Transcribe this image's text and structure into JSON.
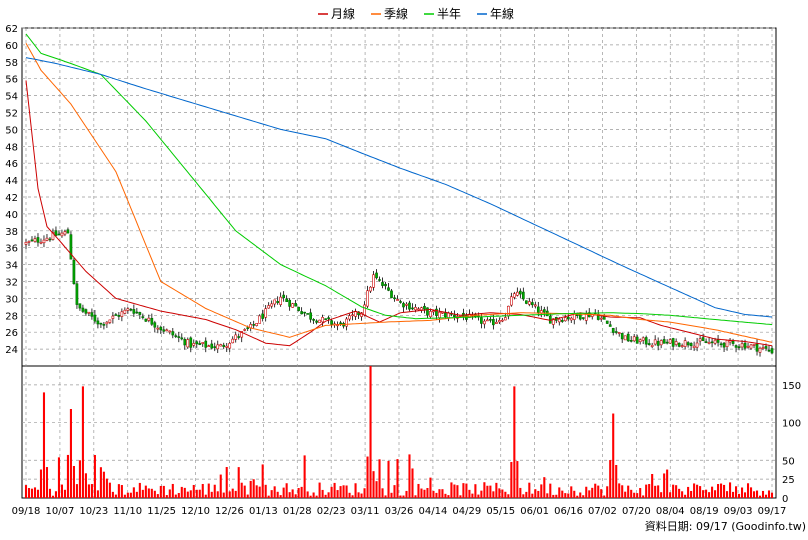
{
  "chart_data": {
    "type": "line",
    "subtype": "candlestick-with-moving-averages-and-volume",
    "legend": [
      {
        "name": "月線",
        "color": "#cc0000"
      },
      {
        "name": "季線",
        "color": "#ff6600"
      },
      {
        "name": "半年",
        "color": "#00cc00"
      },
      {
        "name": "年線",
        "color": "#0066cc"
      }
    ],
    "legend_position": "top-center",
    "grid": true,
    "price_axis": {
      "ylim": [
        22,
        62
      ],
      "ticks": [
        24,
        26,
        28,
        30,
        32,
        34,
        36,
        38,
        40,
        42,
        44,
        46,
        48,
        50,
        52,
        54,
        56,
        58,
        60,
        62
      ],
      "side": "left"
    },
    "volume_axis": {
      "ylim": [
        0,
        175
      ],
      "ticks": [
        0,
        25,
        50,
        100,
        150
      ],
      "side": "right"
    },
    "x_ticks": [
      "09/18",
      "10/07",
      "10/23",
      "11/10",
      "11/25",
      "12/10",
      "12/26",
      "01/13",
      "01/28",
      "02/23",
      "03/11",
      "03/26",
      "04/14",
      "04/29",
      "05/15",
      "06/01",
      "06/16",
      "07/02",
      "07/20",
      "08/04",
      "08/19",
      "09/03",
      "09/17"
    ],
    "x_count": 250,
    "series": [
      {
        "name": "月線",
        "x": [
          0,
          4,
          7,
          12,
          20,
          30,
          45,
          60,
          70,
          80,
          88,
          95,
          100,
          110,
          118,
          125,
          135,
          145,
          155,
          165,
          175,
          185,
          195,
          205,
          212,
          220,
          230,
          240,
          249
        ],
        "values": [
          55.8,
          43,
          38.5,
          36.5,
          33.2,
          30,
          28.5,
          27.5,
          26.3,
          24.7,
          24.4,
          26,
          27.3,
          28.5,
          27.2,
          28.3,
          28.7,
          28,
          28.3,
          28.1,
          27.4,
          28.3,
          27.8,
          27.7,
          26.8,
          26.1,
          25.2,
          24.9,
          24.4
        ]
      },
      {
        "name": "季線",
        "x": [
          0,
          5,
          15,
          30,
          45,
          60,
          75,
          88,
          100,
          110,
          120,
          135,
          150,
          165,
          180,
          195,
          205,
          215,
          230,
          249
        ],
        "values": [
          60.2,
          57,
          53,
          45,
          32,
          28.8,
          26.5,
          25.4,
          26.8,
          27,
          27.2,
          27.4,
          28,
          28.3,
          28.2,
          28,
          27.5,
          27.2,
          26.3,
          24.8
        ]
      },
      {
        "name": "半年",
        "x": [
          0,
          5,
          15,
          25,
          40,
          55,
          70,
          85,
          100,
          112,
          120,
          130,
          140,
          150,
          165,
          180,
          195,
          205,
          215,
          230,
          249
        ],
        "values": [
          61.3,
          59,
          57.8,
          56.5,
          51,
          44.5,
          38,
          34,
          31.5,
          29,
          28,
          27.6,
          27.7,
          27.8,
          28,
          28.2,
          28.3,
          28.2,
          28,
          27.5,
          26.9
        ]
      },
      {
        "name": "年線",
        "x": [
          0,
          10,
          25,
          40,
          55,
          70,
          85,
          100,
          112,
          125,
          140,
          155,
          170,
          185,
          200,
          215,
          230,
          240,
          249
        ],
        "values": [
          58.5,
          57.8,
          56.5,
          54.8,
          53.2,
          51.6,
          50,
          48.9,
          47.2,
          45.4,
          43.5,
          41.2,
          38.7,
          36.2,
          33.7,
          31.3,
          28.9,
          28.1,
          27.8
        ]
      }
    ],
    "candles_summary": [
      {
        "x": 0,
        "close": 36.5
      },
      {
        "x": 10,
        "close": 37.5
      },
      {
        "x": 14,
        "close": 37.8
      },
      {
        "x": 17,
        "close": 29
      },
      {
        "x": 25,
        "close": 27
      },
      {
        "x": 35,
        "close": 28.8
      },
      {
        "x": 45,
        "close": 26.5
      },
      {
        "x": 55,
        "close": 24.5
      },
      {
        "x": 65,
        "close": 24.3
      },
      {
        "x": 75,
        "close": 26.5
      },
      {
        "x": 85,
        "close": 30.2
      },
      {
        "x": 95,
        "close": 27.8
      },
      {
        "x": 105,
        "close": 26.8
      },
      {
        "x": 112,
        "close": 28.5
      },
      {
        "x": 116,
        "close": 32.6
      },
      {
        "x": 125,
        "close": 29.5
      },
      {
        "x": 135,
        "close": 28.2
      },
      {
        "x": 145,
        "close": 28
      },
      {
        "x": 155,
        "close": 27
      },
      {
        "x": 160,
        "close": 28
      },
      {
        "x": 163,
        "close": 30.7
      },
      {
        "x": 175,
        "close": 27.5
      },
      {
        "x": 190,
        "close": 28.2
      },
      {
        "x": 200,
        "close": 25.2
      },
      {
        "x": 210,
        "close": 24.7
      },
      {
        "x": 225,
        "close": 24.8
      },
      {
        "x": 240,
        "close": 24.5
      },
      {
        "x": 249,
        "close": 23.8
      }
    ],
    "volume_peaks": [
      {
        "x": 6,
        "v": 140
      },
      {
        "x": 15,
        "v": 118
      },
      {
        "x": 19,
        "v": 148
      },
      {
        "x": 115,
        "v": 178
      },
      {
        "x": 163,
        "v": 148
      },
      {
        "x": 196,
        "v": 112
      }
    ],
    "footer": "資料日期: 09/17  (Goodinfo.tw)"
  }
}
